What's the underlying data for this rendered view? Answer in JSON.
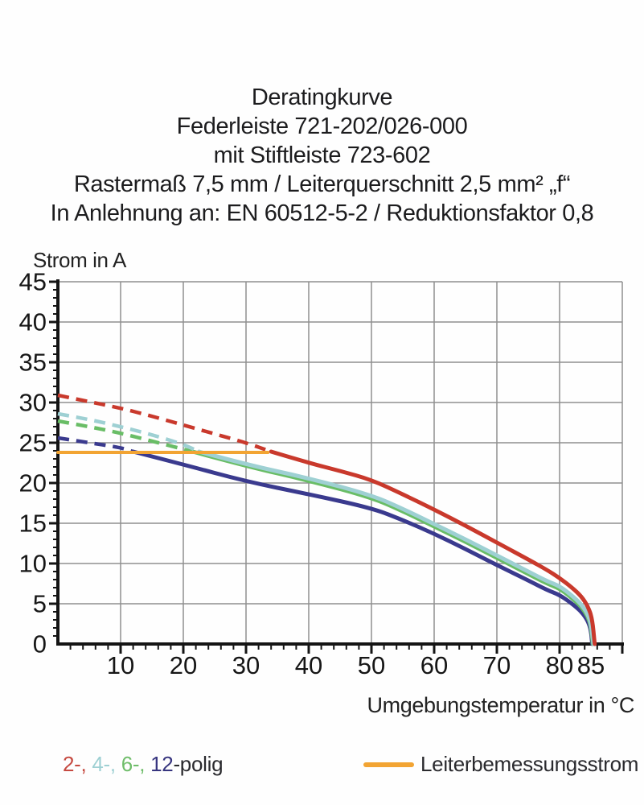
{
  "title_lines": [
    "Deratingkurve",
    "Federleiste 721-202/026-000",
    "mit Stiftleiste 723-602",
    "Rastermaß 7,5 mm / Leiterquerschnitt 2,5 mm² „f“",
    "In Anlehnung an: EN 60512-5-2 / Reduktionsfaktor 0,8"
  ],
  "legend": {
    "poles_tokens": [
      {
        "text": "2-, ",
        "color": "#c64a41"
      },
      {
        "text": "4-, ",
        "color": "#9ed0d3"
      },
      {
        "text": "6-, ",
        "color": "#6fbd6a"
      },
      {
        "text": "12",
        "color": "#37357f"
      },
      {
        "text": "-polig",
        "color": "#2a2a2e"
      }
    ],
    "rated_label": "Leiterbemessungsstrom",
    "rated_color": "#f2a433"
  },
  "chart_data": {
    "type": "line",
    "x_label": "Umgebungstemperatur in °C",
    "y_label": "Strom in A",
    "x_range": [
      0,
      90
    ],
    "y_range": [
      0,
      45
    ],
    "x_grid_step": 10,
    "y_grid_step": 5,
    "x_minor_step": 2,
    "y_minor_step": 1,
    "x_tick_labels": [
      10,
      20,
      30,
      40,
      50,
      60,
      70,
      80,
      85
    ],
    "y_tick_labels": [
      0,
      5,
      10,
      15,
      20,
      25,
      30,
      35,
      40,
      45
    ],
    "grid_color": "#8f8f8f",
    "axis_color": "#141414",
    "series": [
      {
        "name": "12-polig",
        "color": "#3a3a8e",
        "dashed": [
          [
            0,
            25.6
          ],
          [
            5,
            25.0
          ],
          [
            10,
            24.4
          ],
          [
            12,
            23.9
          ]
        ],
        "solid": [
          [
            12,
            23.9
          ],
          [
            20,
            22.3
          ],
          [
            30,
            20.2
          ],
          [
            40,
            18.6
          ],
          [
            50,
            16.9
          ],
          [
            55,
            15.4
          ],
          [
            60,
            13.7
          ],
          [
            65,
            11.8
          ],
          [
            70,
            9.8
          ],
          [
            75,
            7.9
          ],
          [
            78,
            6.7
          ],
          [
            80,
            6.1
          ],
          [
            82,
            5.0
          ],
          [
            83.5,
            4.0
          ],
          [
            84.5,
            2.9
          ],
          [
            85,
            1.7
          ],
          [
            85.2,
            0
          ]
        ]
      },
      {
        "name": "6-polig",
        "color": "#69bd66",
        "dashed": [
          [
            0,
            27.7
          ],
          [
            5,
            27.0
          ],
          [
            10,
            26.2
          ],
          [
            15,
            25.2
          ],
          [
            20,
            24.2
          ],
          [
            21.5,
            23.9
          ]
        ],
        "solid": [
          [
            21.5,
            23.9
          ],
          [
            30,
            22.1
          ],
          [
            40,
            20.3
          ],
          [
            50,
            18.2
          ],
          [
            55,
            16.5
          ],
          [
            60,
            14.6
          ],
          [
            65,
            12.7
          ],
          [
            70,
            10.7
          ],
          [
            75,
            8.7
          ],
          [
            78,
            7.5
          ],
          [
            80,
            6.9
          ],
          [
            82,
            5.7
          ],
          [
            83.5,
            4.6
          ],
          [
            84.5,
            3.4
          ],
          [
            85,
            2.2
          ],
          [
            85.3,
            0
          ]
        ]
      },
      {
        "name": "4-polig",
        "color": "#9ed0d3",
        "dashed": [
          [
            0,
            28.6
          ],
          [
            5,
            27.9
          ],
          [
            10,
            27.0
          ],
          [
            15,
            26.0
          ],
          [
            20,
            24.8
          ],
          [
            22.5,
            23.9
          ]
        ],
        "solid": [
          [
            22.5,
            23.9
          ],
          [
            30,
            22.3
          ],
          [
            40,
            20.6
          ],
          [
            50,
            18.5
          ],
          [
            55,
            16.8
          ],
          [
            60,
            14.9
          ],
          [
            65,
            13.0
          ],
          [
            70,
            11.0
          ],
          [
            75,
            9.0
          ],
          [
            78,
            7.8
          ],
          [
            80,
            7.2
          ],
          [
            82,
            6.0
          ],
          [
            83.5,
            4.9
          ],
          [
            84.5,
            3.7
          ],
          [
            85,
            2.5
          ],
          [
            85.4,
            0
          ]
        ]
      },
      {
        "name": "2-polig",
        "color": "#c9392c",
        "dashed": [
          [
            0,
            30.9
          ],
          [
            5,
            30.1
          ],
          [
            10,
            29.3
          ],
          [
            15,
            28.3
          ],
          [
            20,
            27.2
          ],
          [
            25,
            26.1
          ],
          [
            30,
            25.0
          ],
          [
            34,
            23.9
          ]
        ],
        "solid": [
          [
            34,
            23.9
          ],
          [
            40,
            22.5
          ],
          [
            45,
            21.5
          ],
          [
            50,
            20.4
          ],
          [
            55,
            18.6
          ],
          [
            60,
            16.7
          ],
          [
            65,
            14.7
          ],
          [
            70,
            12.6
          ],
          [
            75,
            10.5
          ],
          [
            78,
            9.2
          ],
          [
            80,
            8.2
          ],
          [
            82,
            7.0
          ],
          [
            83.5,
            5.9
          ],
          [
            84.5,
            4.7
          ],
          [
            85.2,
            3.2
          ],
          [
            85.6,
            0
          ]
        ]
      },
      {
        "name": "Leiterbemessungsstrom",
        "color": "#f2a433",
        "solid": [
          [
            0,
            23.8
          ],
          [
            33.5,
            23.8
          ]
        ]
      }
    ]
  }
}
